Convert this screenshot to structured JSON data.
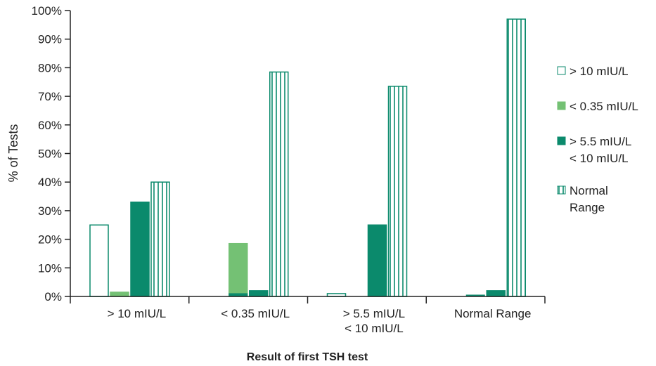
{
  "chart_data": {
    "type": "bar",
    "categories": [
      [
        "> 10 mIU/L"
      ],
      [
        "< 0.35 mIU/L"
      ],
      [
        "> 5.5 mIU/L",
        "< 10 mIU/L"
      ],
      [
        "Normal Range"
      ]
    ],
    "series": [
      {
        "name": [
          "> 10 mIU/L"
        ],
        "values": [
          25,
          0,
          1,
          0
        ],
        "fill": "#ffffff",
        "stroke": "#0b8a6c",
        "pattern": "hollow"
      },
      {
        "name": [
          "< 0.35 mIU/L"
        ],
        "values": [
          1.5,
          18.5,
          0,
          0
        ],
        "fill": "#74c174",
        "stroke": "#74c174",
        "pattern": "solid"
      },
      {
        "name": [
          "> 5.5 mIU/L",
          "< 10 mIU/L"
        ],
        "values": [
          33,
          2,
          25,
          2
        ],
        "fill": "#0b8a6c",
        "stroke": "#0b8a6c",
        "pattern": "solid"
      },
      {
        "name": [
          "Normal",
          "Range"
        ],
        "values": [
          40,
          78.5,
          73.5,
          97
        ],
        "fill": "#ffffff",
        "stroke": "#0b8a6c",
        "pattern": "vertical-lines"
      }
    ],
    "extra_marks": [
      {
        "series": 2,
        "category": 1,
        "value": 1
      },
      {
        "series": 2,
        "category": 3,
        "value": 0.5
      }
    ],
    "yticks": [
      "0%",
      "10%",
      "20%",
      "30%",
      "40%",
      "50%",
      "60%",
      "70%",
      "80%",
      "90%",
      "100%"
    ],
    "ylim": [
      0,
      100
    ],
    "xlabel": "Result of first TSH test",
    "ylabel": "% of Tests",
    "legend": "right"
  }
}
